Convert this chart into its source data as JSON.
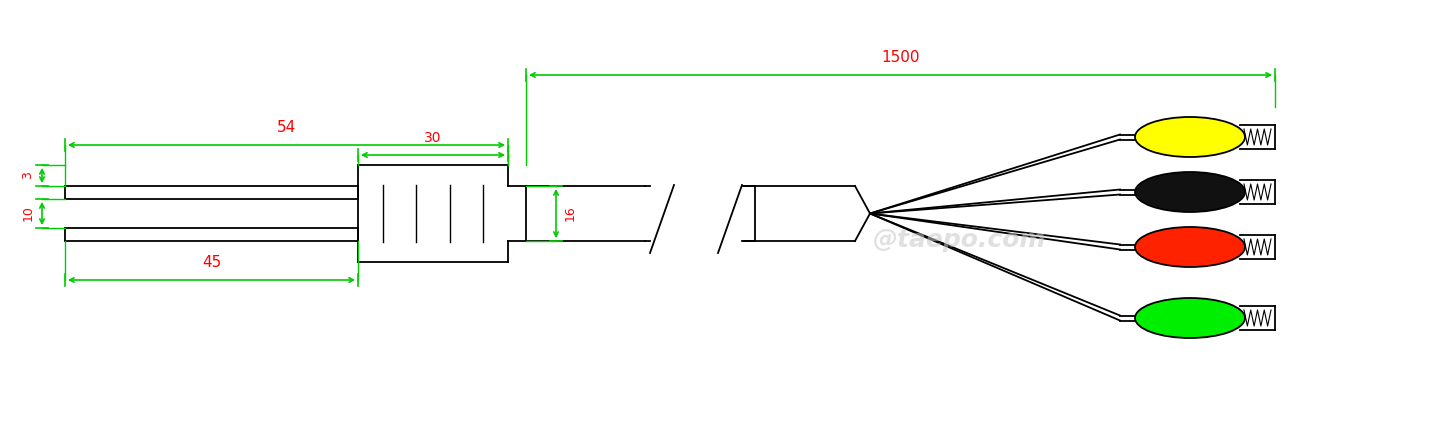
{
  "bg_color": "#ffffff",
  "line_color": "#000000",
  "dim_color": "#00cc00",
  "dim_text_color": "#ff0000",
  "watermark_color": "#c8c8c8",
  "watermark_text": "@taepo.com",
  "dims": {
    "label_54": "54",
    "label_45": "45",
    "label_3": "3",
    "label_10": "10",
    "label_30": "30",
    "label_16": "16",
    "label_1500": "1500"
  },
  "clip_colors": [
    "#ffff00",
    "#111111",
    "#ff2200",
    "#00ee00"
  ],
  "clip_outline": "#000000"
}
